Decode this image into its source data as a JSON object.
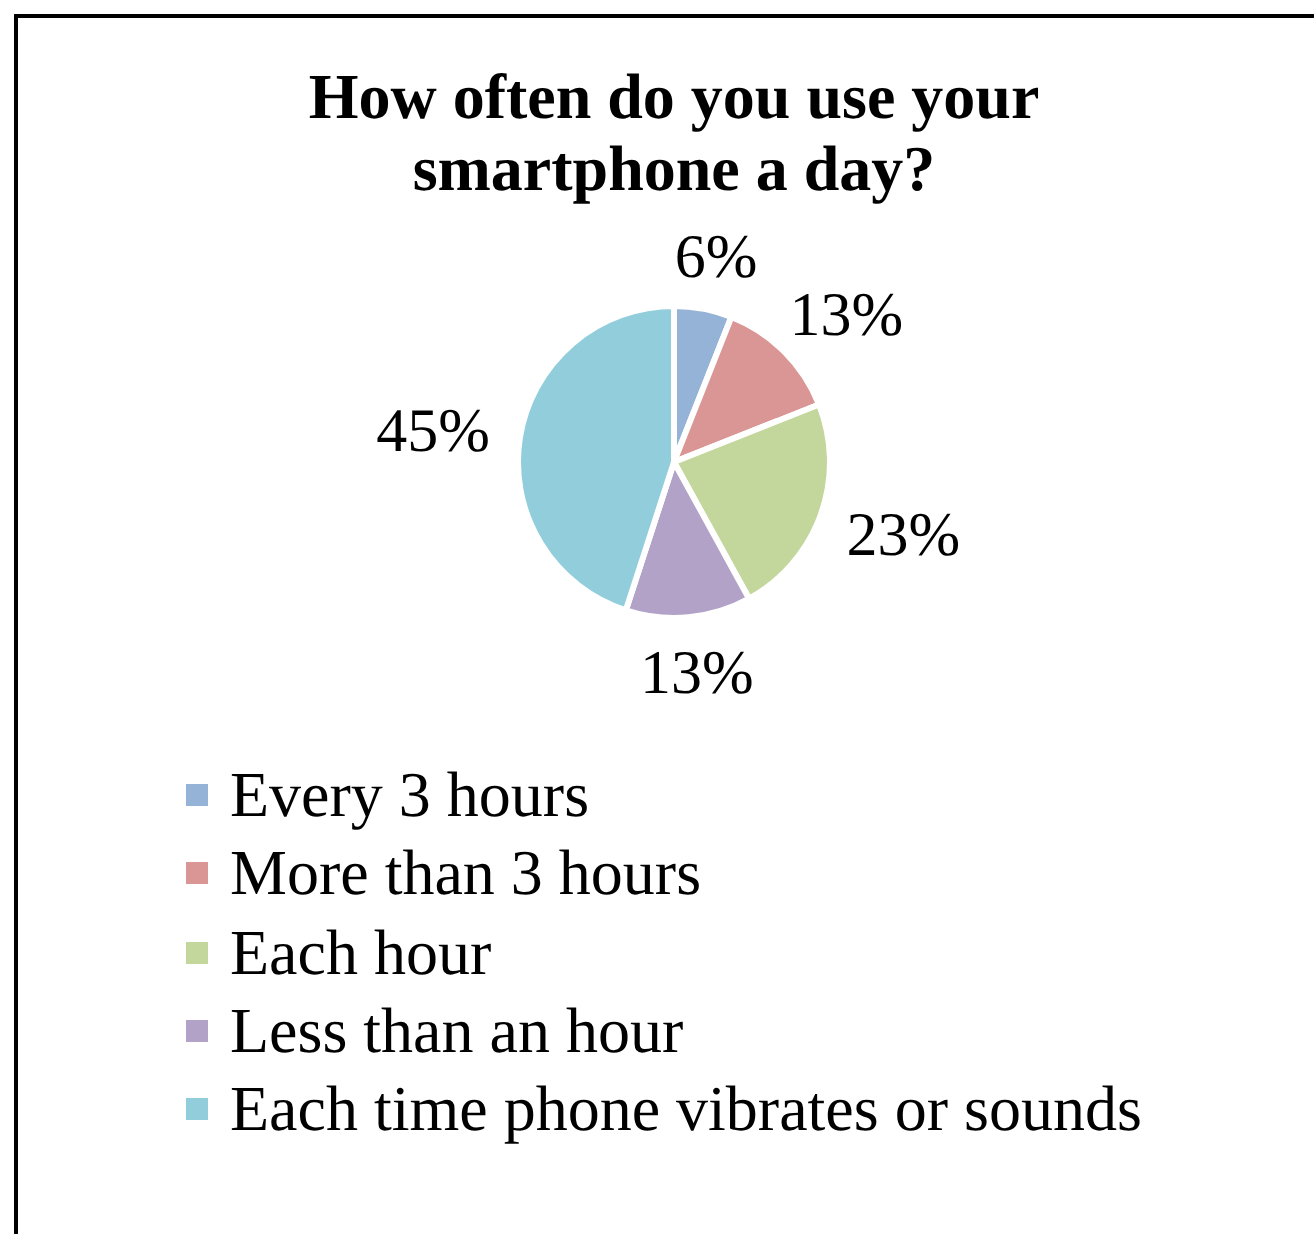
{
  "chart_data": {
    "type": "pie",
    "title": "How often do you use your smartphone a day?",
    "categories": [
      "Every 3 hours",
      "More than 3 hours",
      "Each hour",
      "Less than an hour",
      "Each time phone vibrates or sounds"
    ],
    "values": [
      6,
      13,
      23,
      13,
      45
    ],
    "colors": [
      "#95b3d7",
      "#d99694",
      "#c3d69b",
      "#b2a2c7",
      "#92cddc"
    ],
    "value_labels": [
      "6%",
      "13%",
      "23%",
      "13%",
      "45%"
    ],
    "legend": "bottom"
  }
}
